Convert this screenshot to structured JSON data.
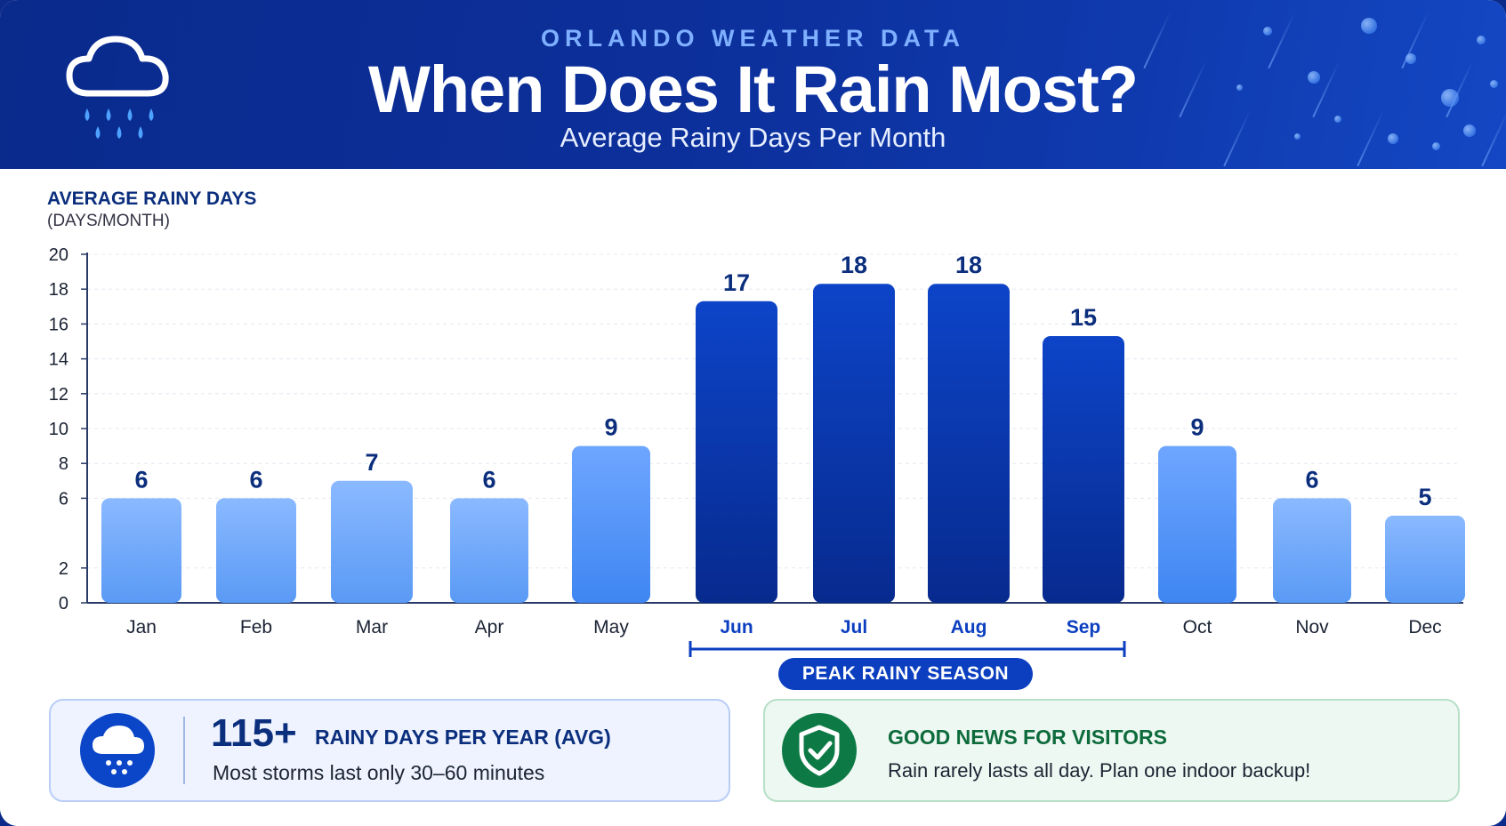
{
  "header": {
    "kicker": "ORLANDO WEATHER DATA",
    "title": "When Does It Rain Most?",
    "subtitle": "Average Rainy Days Per Month"
  },
  "icons": {
    "header": "cloud-rain-icon",
    "stat": "cloud-rain-icon",
    "visitors": "shield-check-icon"
  },
  "colors": {
    "header_bg": "#0c2f9a",
    "light_bar": "#7fb0ff",
    "peak_bar": "#0b3bbd",
    "accent_green": "#0d7a45",
    "text_dark_blue": "#0b2e7d"
  },
  "chart_data": {
    "type": "bar",
    "ylabel": "AVERAGE RAINY DAYS",
    "ylabel_unit": "(DAYS/MONTH)",
    "y_ticks": [
      "0",
      "2",
      "6",
      "8",
      "10",
      "12",
      "14",
      "16",
      "18",
      "20"
    ],
    "categories": [
      "Jan",
      "Feb",
      "Mar",
      "Apr",
      "May",
      "Jun",
      "Jul",
      "Aug",
      "Sep",
      "Oct",
      "Nov",
      "Dec"
    ],
    "values": [
      6,
      6,
      7,
      6,
      9,
      17,
      18,
      18,
      15,
      9,
      6,
      5
    ],
    "peak_months": [
      "Jun",
      "Jul",
      "Aug",
      "Sep"
    ],
    "peak_label": "PEAK RAINY SEASON",
    "grid": true
  },
  "stats": {
    "left": {
      "number": "115+",
      "heading": "RAINY DAYS PER YEAR (AVG)",
      "text": "Most storms last only 30–60 minutes"
    },
    "right": {
      "heading": "GOOD NEWS FOR VISITORS",
      "text": "Rain rarely lasts all day. Plan one indoor backup!"
    }
  }
}
